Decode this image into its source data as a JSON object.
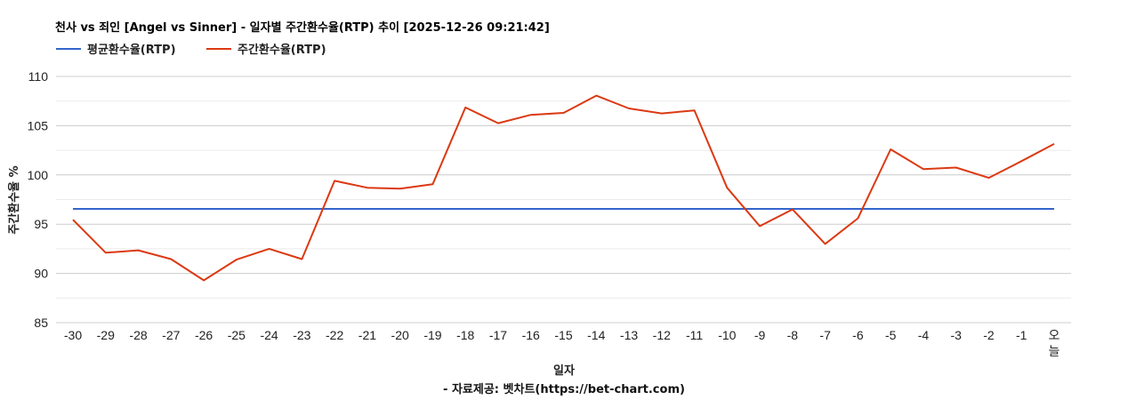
{
  "header": {
    "title": "천사 vs 죄인 [Angel vs Sinner] - 일자별 주간환수율(RTP) 추이 [2025-12-26 09:21:42]"
  },
  "legend": [
    {
      "label": "평균환수율(RTP)",
      "color": "#3366cc"
    },
    {
      "label": "주간환수율(RTP)",
      "color": "#dc3912"
    }
  ],
  "footer": {
    "source": "- 자료제공: 벳차트(https://bet-chart.com)"
  },
  "chart_data": {
    "type": "line",
    "title": "천사 vs 죄인 [Angel vs Sinner] - 일자별 주간환수율(RTP) 추이 [2025-12-26 09:21:42]",
    "xlabel": "일자",
    "ylabel": "주간환수율 %",
    "ylim": [
      85,
      110
    ],
    "yticks": [
      85,
      90,
      95,
      100,
      105,
      110
    ],
    "grid": true,
    "minor_grid": true,
    "legend_position": "top",
    "categories": [
      "-30",
      "-29",
      "-28",
      "-27",
      "-26",
      "-25",
      "-24",
      "-23",
      "-22",
      "-21",
      "-20",
      "-19",
      "-18",
      "-17",
      "-16",
      "-15",
      "-14",
      "-13",
      "-12",
      "-11",
      "-10",
      "-9",
      "-8",
      "-7",
      "-6",
      "-5",
      "-4",
      "-3",
      "-2",
      "-1",
      "오늘"
    ],
    "series": [
      {
        "name": "평균환수율(RTP)",
        "color": "#3366cc",
        "values": [
          96.55,
          96.55,
          96.55,
          96.55,
          96.55,
          96.55,
          96.55,
          96.55,
          96.55,
          96.55,
          96.55,
          96.55,
          96.55,
          96.55,
          96.55,
          96.55,
          96.55,
          96.55,
          96.55,
          96.55,
          96.55,
          96.55,
          96.55,
          96.55,
          96.55,
          96.55,
          96.55,
          96.55,
          96.55,
          96.55,
          96.55
        ]
      },
      {
        "name": "주간환수율(RTP)",
        "color": "#dc3912",
        "values": [
          95.45,
          92.1,
          92.35,
          91.45,
          89.3,
          91.4,
          92.5,
          91.45,
          99.4,
          98.7,
          98.6,
          99.05,
          106.85,
          105.25,
          106.1,
          106.3,
          108.05,
          106.75,
          106.25,
          106.55,
          98.7,
          94.8,
          96.5,
          93.0,
          95.6,
          102.6,
          100.6,
          100.75,
          99.7,
          101.4,
          103.15
        ]
      }
    ]
  },
  "source_text": "- 자료제공: 벳차트(https://bet-chart.com)"
}
